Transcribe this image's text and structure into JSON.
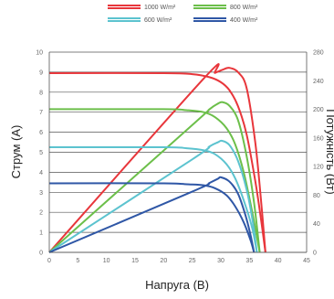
{
  "chart_data": {
    "type": "line",
    "xlabel": "Напруга (В)",
    "ylabel_left": "Струм (А)",
    "ylabel_right": "Потужність (Вт)",
    "xlim": [
      0,
      45
    ],
    "ylim_left": [
      0,
      10
    ],
    "ylim_right": [
      0,
      280
    ],
    "x_ticks": [
      0,
      5,
      10,
      15,
      20,
      25,
      30,
      35,
      40,
      45
    ],
    "y_ticks_left": [
      0,
      1,
      2,
      3,
      4,
      5,
      6,
      7,
      8,
      9,
      10
    ],
    "y_ticks_right": [
      0,
      40,
      80,
      120,
      160,
      200,
      240,
      280
    ],
    "grid": "horizontal",
    "legend": "top",
    "series": [
      {
        "name": "1000 W/m²",
        "color": "#e8363b",
        "iv_curve": [
          [
            0,
            8.95
          ],
          [
            20,
            8.95
          ],
          [
            25,
            8.9
          ],
          [
            28,
            8.75
          ],
          [
            30,
            8.5
          ],
          [
            31.5,
            8.1
          ],
          [
            33,
            7.3
          ],
          [
            34.5,
            5.9
          ],
          [
            36,
            3.6
          ],
          [
            37,
            1.7
          ],
          [
            37.8,
            0
          ]
        ],
        "power_curve": [
          [
            0,
            0
          ],
          [
            27,
            243
          ],
          [
            29,
            251
          ],
          [
            30.5,
            256
          ],
          [
            31.5,
            258
          ],
          [
            33,
            252
          ],
          [
            34.5,
            230
          ],
          [
            36,
            155
          ],
          [
            37,
            75
          ],
          [
            37.8,
            0
          ]
        ]
      },
      {
        "name": "800 W/m²",
        "color": "#6cbf4a",
        "iv_curve": [
          [
            0,
            7.15
          ],
          [
            20,
            7.15
          ],
          [
            24,
            7.1
          ],
          [
            27,
            7.0
          ],
          [
            29,
            6.75
          ],
          [
            31,
            6.2
          ],
          [
            32.5,
            5.4
          ],
          [
            34,
            4.0
          ],
          [
            35.5,
            2.0
          ],
          [
            36.8,
            0
          ]
        ],
        "power_curve": [
          [
            0,
            0
          ],
          [
            25,
            178
          ],
          [
            28,
            200
          ],
          [
            29.5,
            208
          ],
          [
            30.3,
            210
          ],
          [
            31.5,
            205
          ],
          [
            33,
            185
          ],
          [
            34.5,
            135
          ],
          [
            35.8,
            70
          ],
          [
            36.8,
            0
          ]
        ]
      },
      {
        "name": "600 W/m²",
        "color": "#5cc3cf",
        "iv_curve": [
          [
            0,
            5.25
          ],
          [
            20,
            5.25
          ],
          [
            24,
            5.2
          ],
          [
            27,
            5.1
          ],
          [
            29,
            4.9
          ],
          [
            31,
            4.4
          ],
          [
            32.5,
            3.7
          ],
          [
            34,
            2.6
          ],
          [
            35.5,
            1.2
          ],
          [
            36.3,
            0
          ]
        ],
        "power_curve": [
          [
            0,
            0
          ],
          [
            25,
            130
          ],
          [
            28,
            148
          ],
          [
            29.5,
            154
          ],
          [
            30.2,
            156
          ],
          [
            31.5,
            150
          ],
          [
            33,
            128
          ],
          [
            34.5,
            88
          ],
          [
            35.6,
            42
          ],
          [
            36.3,
            0
          ]
        ]
      },
      {
        "name": "400 W/m²",
        "color": "#2f57a6",
        "iv_curve": [
          [
            0,
            3.45
          ],
          [
            20,
            3.45
          ],
          [
            24,
            3.4
          ],
          [
            27,
            3.35
          ],
          [
            29,
            3.2
          ],
          [
            31,
            2.85
          ],
          [
            32.5,
            2.3
          ],
          [
            34,
            1.5
          ],
          [
            35.2,
            0.6
          ],
          [
            35.8,
            0
          ]
        ],
        "power_curve": [
          [
            0,
            0
          ],
          [
            25,
            85
          ],
          [
            28,
            97
          ],
          [
            29.5,
            103
          ],
          [
            30,
            105
          ],
          [
            31.5,
            99
          ],
          [
            33,
            82
          ],
          [
            34.3,
            52
          ],
          [
            35.2,
            24
          ],
          [
            35.8,
            0
          ]
        ]
      }
    ]
  }
}
